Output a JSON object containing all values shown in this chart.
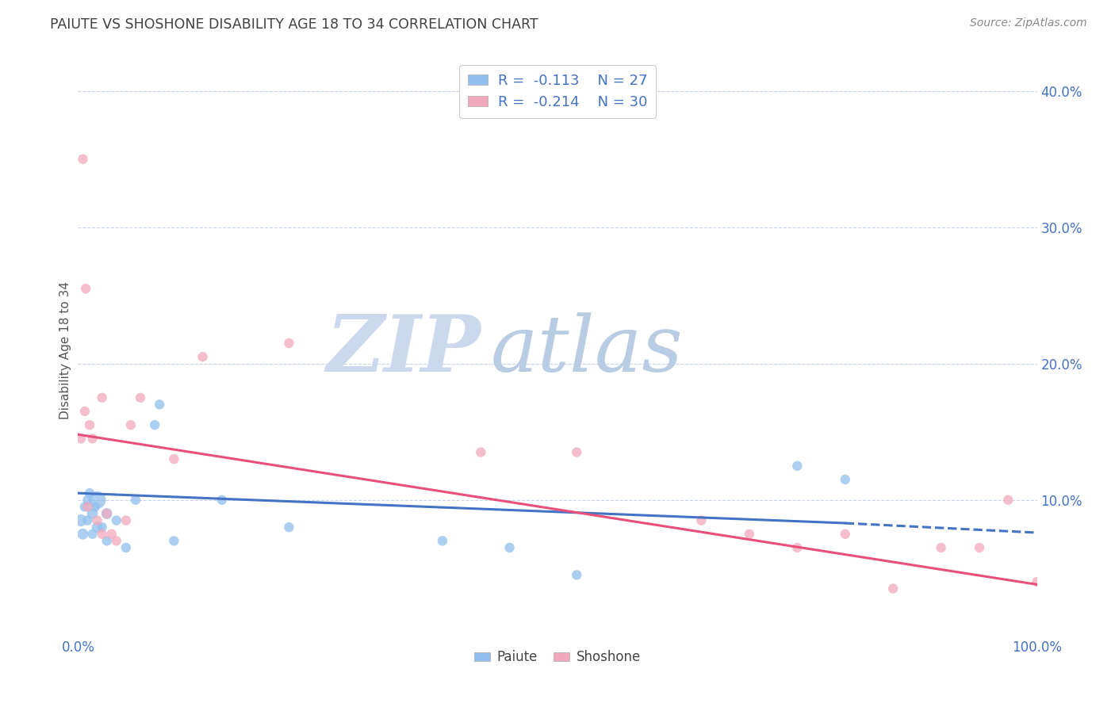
{
  "title": "PAIUTE VS SHOSHONE DISABILITY AGE 18 TO 34 CORRELATION CHART",
  "source_text": "Source: ZipAtlas.com",
  "ylabel": "Disability Age 18 to 34",
  "xlim": [
    0,
    1.0
  ],
  "ylim": [
    0,
    0.42
  ],
  "xtick_positions": [
    0.0,
    0.1,
    0.2,
    0.3,
    0.4,
    0.5,
    0.6,
    0.7,
    0.8,
    0.9,
    1.0
  ],
  "ytick_positions": [
    0.0,
    0.1,
    0.2,
    0.3,
    0.4
  ],
  "ytick_labels": [
    "",
    "10.0%",
    "20.0%",
    "30.0%",
    "40.0%"
  ],
  "paiute_R": -0.113,
  "paiute_N": 27,
  "shoshone_R": -0.214,
  "shoshone_N": 30,
  "paiute_color": "#90bfed",
  "shoshone_color": "#f2a8bc",
  "paiute_line_color": "#4472c4",
  "shoshone_line_color": "#e8507a",
  "background_color": "#ffffff",
  "grid_color": "#c8d4e8",
  "title_color": "#404040",
  "axis_label_color": "#4472c4",
  "ylabel_color": "#555555",
  "source_color": "#888888",
  "legend_text_color": "#4472c4",
  "watermark_zip_color": "#ccd8ee",
  "watermark_atlas_color": "#b8cce4",
  "paiute_x": [
    0.003,
    0.005,
    0.007,
    0.01,
    0.01,
    0.012,
    0.015,
    0.015,
    0.018,
    0.02,
    0.02,
    0.025,
    0.03,
    0.03,
    0.04,
    0.05,
    0.06,
    0.08,
    0.1,
    0.15,
    0.22,
    0.38,
    0.45,
    0.52,
    0.75,
    0.8,
    0.085
  ],
  "paiute_y": [
    0.085,
    0.075,
    0.095,
    0.1,
    0.085,
    0.105,
    0.09,
    0.075,
    0.095,
    0.1,
    0.08,
    0.08,
    0.09,
    0.07,
    0.085,
    0.065,
    0.1,
    0.155,
    0.07,
    0.1,
    0.08,
    0.07,
    0.065,
    0.045,
    0.125,
    0.115,
    0.17
  ],
  "paiute_sizes": [
    120,
    100,
    80,
    80,
    80,
    80,
    100,
    80,
    80,
    250,
    100,
    80,
    100,
    80,
    80,
    80,
    80,
    80,
    80,
    80,
    80,
    80,
    80,
    80,
    80,
    80,
    80
  ],
  "shoshone_x": [
    0.003,
    0.007,
    0.01,
    0.012,
    0.015,
    0.02,
    0.025,
    0.03,
    0.035,
    0.04,
    0.05,
    0.055,
    0.065,
    0.1,
    0.13,
    0.22,
    0.42,
    0.52,
    0.65,
    0.7,
    0.75,
    0.8,
    0.85,
    0.9,
    0.94,
    0.97,
    1.0,
    0.005,
    0.008,
    0.025
  ],
  "shoshone_y": [
    0.145,
    0.165,
    0.095,
    0.155,
    0.145,
    0.085,
    0.175,
    0.09,
    0.075,
    0.07,
    0.085,
    0.155,
    0.175,
    0.13,
    0.205,
    0.215,
    0.135,
    0.135,
    0.085,
    0.075,
    0.065,
    0.075,
    0.035,
    0.065,
    0.065,
    0.1,
    0.04,
    0.35,
    0.255,
    0.075
  ],
  "shoshone_sizes": [
    80,
    80,
    80,
    80,
    80,
    80,
    80,
    80,
    80,
    80,
    80,
    80,
    80,
    80,
    80,
    80,
    80,
    80,
    80,
    80,
    80,
    80,
    80,
    80,
    80,
    80,
    80,
    80,
    80,
    80
  ],
  "paiute_trend_x0": 0.0,
  "paiute_trend_x1": 0.8,
  "paiute_trend_x1_dash": 1.0,
  "paiute_trend_y0": 0.105,
  "paiute_trend_y1": 0.083,
  "paiute_trend_y1_dash": 0.076,
  "shoshone_trend_x0": 0.0,
  "shoshone_trend_x1": 1.0,
  "shoshone_trend_y0": 0.148,
  "shoshone_trend_y1": 0.038
}
